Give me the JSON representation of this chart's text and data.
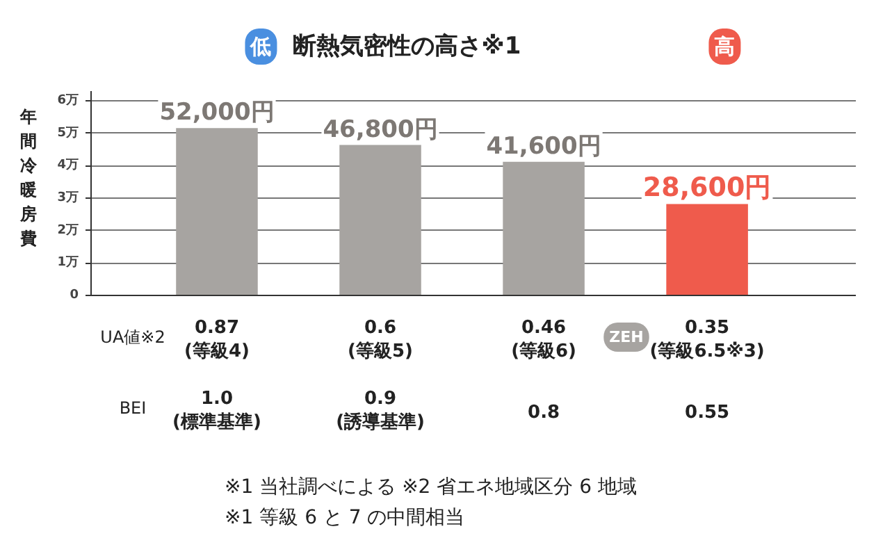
{
  "chart_data": {
    "type": "bar",
    "title": "断熱気密性の高さ※1",
    "ylabel": "年間冷暖房費",
    "categories": [
      null,
      null,
      null,
      null
    ],
    "values": [
      5.2,
      4.68,
      4.16,
      2.86
    ],
    "colors": [
      "#a7a4a1",
      "#a7a4a1",
      "#a7a4a1",
      "#ef5b4c"
    ],
    "ylim": [
      0,
      6.3
    ],
    "yticks": [
      0,
      {
        "value": 1,
        "label": "1万"
      },
      {
        "value": 2,
        "label": "2万"
      },
      {
        "value": 3,
        "label": "3万"
      },
      {
        "value": 4,
        "label": "4万"
      },
      {
        "value": 5,
        "label": "5万"
      },
      {
        "value": 6,
        "label": "6万"
      }
    ],
    "grid": "y",
    "annotations": [
      "低",
      "高",
      "UA値※2",
      "0.87\n(等級4)",
      "0.6\n(等級5)",
      "0.46\n(等級6)",
      "0.35\n(等級6.5※3)",
      "ZEH",
      "BEI",
      "1.0\n(標準基準)",
      "0.9\n(誘導基準)",
      "0.8",
      "0.55",
      "※1 当社調べによる ※2 省エネ地域区分 6 地域",
      "※1 等級 6 と 7 の中間相当",
      "52,000円",
      "46,800円",
      "41,600円",
      "28,600円"
    ]
  }
}
